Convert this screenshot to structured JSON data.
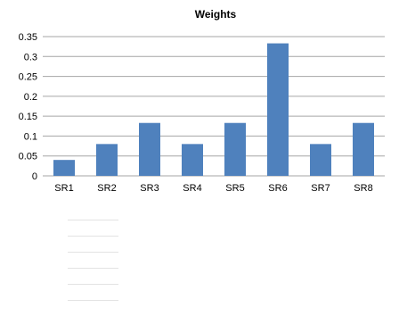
{
  "chart_data": {
    "type": "bar",
    "title": "Weights",
    "categories": [
      "SR1",
      "SR2",
      "SR3",
      "SR4",
      "SR5",
      "SR6",
      "SR7",
      "SR8"
    ],
    "values": [
      0.04,
      0.08,
      0.133,
      0.08,
      0.133,
      0.333,
      0.08,
      0.133
    ],
    "ylim": [
      0,
      0.35
    ],
    "yticks": [
      "0",
      "0.05",
      "0.1",
      "0.15",
      "0.2",
      "0.25",
      "0.3",
      "0.35"
    ],
    "grid": true,
    "bar_color": "#4f81bd",
    "grid_color": "#a6a6a6"
  }
}
